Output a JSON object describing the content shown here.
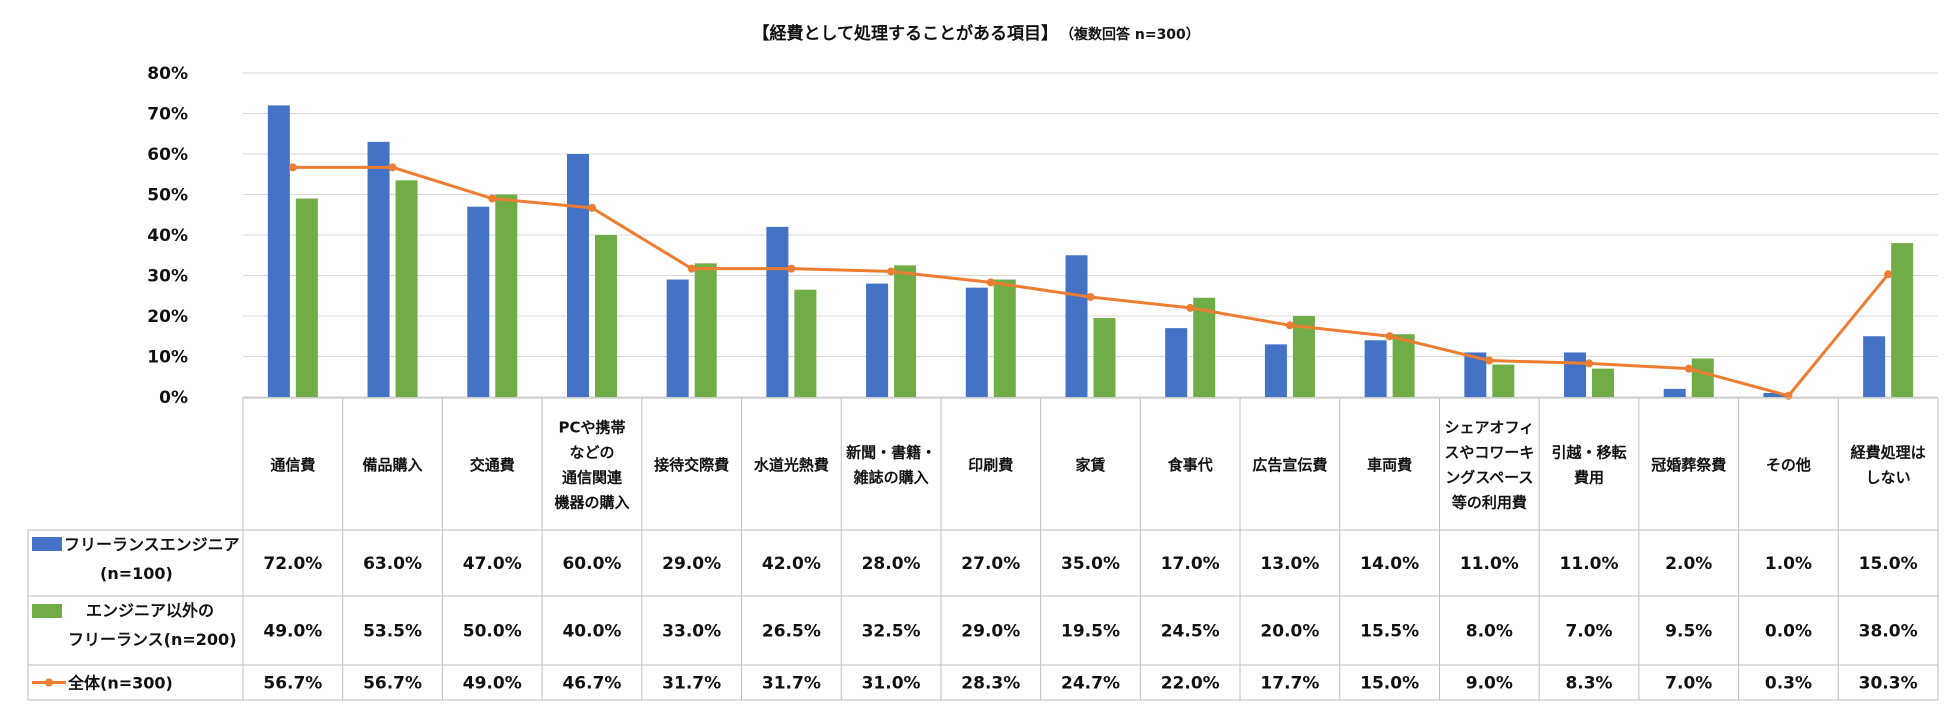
{
  "chart_data": {
    "type": "bar",
    "title": "【経費として処理することがある項目】",
    "subtitle": "（複数回答 n=300）",
    "ylim": [
      0,
      80
    ],
    "yticks": [
      0,
      10,
      20,
      30,
      40,
      50,
      60,
      70,
      80
    ],
    "ytick_labels": [
      "0%",
      "10%",
      "20%",
      "30%",
      "40%",
      "50%",
      "60%",
      "70%",
      "80%"
    ],
    "grid": true,
    "categories": [
      [
        "通信費"
      ],
      [
        "備品購入"
      ],
      [
        "交通費"
      ],
      [
        "PCや携帯",
        "などの",
        "通信関連",
        "機器の購入"
      ],
      [
        "接待交際費"
      ],
      [
        "水道光熱費"
      ],
      [
        "新聞・書籍・",
        "雑誌の購入"
      ],
      [
        "印刷費"
      ],
      [
        "家賃"
      ],
      [
        "食事代"
      ],
      [
        "広告宣伝費"
      ],
      [
        "車両費"
      ],
      [
        "シェアオフィ",
        "スやコワーキ",
        "ングスペース",
        "等の利用費"
      ],
      [
        "引越・移転",
        "費用"
      ],
      [
        "冠婚葬祭費"
      ],
      [
        "その他"
      ],
      [
        "経費処理は",
        "しない"
      ]
    ],
    "series": [
      {
        "name": [
          "フリーランスエンジニア",
          "(n=100)"
        ],
        "kind": "bar",
        "color": "#4472c4",
        "values": [
          72.0,
          63.0,
          47.0,
          60.0,
          29.0,
          42.0,
          28.0,
          27.0,
          35.0,
          17.0,
          13.0,
          14.0,
          11.0,
          11.0,
          2.0,
          1.0,
          15.0
        ],
        "labels": [
          "72.0%",
          "63.0%",
          "47.0%",
          "60.0%",
          "29.0%",
          "42.0%",
          "28.0%",
          "27.0%",
          "35.0%",
          "17.0%",
          "13.0%",
          "14.0%",
          "11.0%",
          "11.0%",
          "2.0%",
          "1.0%",
          "15.0%"
        ]
      },
      {
        "name": [
          "エンジニア以外の",
          "フリーランス(n=200)"
        ],
        "kind": "bar",
        "color": "#70ad47",
        "values": [
          49.0,
          53.5,
          50.0,
          40.0,
          33.0,
          26.5,
          32.5,
          29.0,
          19.5,
          24.5,
          20.0,
          15.5,
          8.0,
          7.0,
          9.5,
          0.0,
          38.0
        ],
        "labels": [
          "49.0%",
          "53.5%",
          "50.0%",
          "40.0%",
          "33.0%",
          "26.5%",
          "32.5%",
          "29.0%",
          "19.5%",
          "24.5%",
          "20.0%",
          "15.5%",
          "8.0%",
          "7.0%",
          "9.5%",
          "0.0%",
          "38.0%"
        ]
      },
      {
        "name": [
          "全体(n=300)"
        ],
        "kind": "line",
        "color": "#ed7d31",
        "values": [
          56.7,
          56.7,
          49.0,
          46.7,
          31.7,
          31.7,
          31.0,
          28.3,
          24.7,
          22.0,
          17.7,
          15.0,
          9.0,
          8.3,
          7.0,
          0.3,
          30.3
        ],
        "labels": [
          "56.7%",
          "56.7%",
          "49.0%",
          "46.7%",
          "31.7%",
          "31.7%",
          "31.0%",
          "28.3%",
          "24.7%",
          "22.0%",
          "17.7%",
          "15.0%",
          "9.0%",
          "8.3%",
          "7.0%",
          "0.3%",
          "30.3%"
        ]
      }
    ]
  }
}
